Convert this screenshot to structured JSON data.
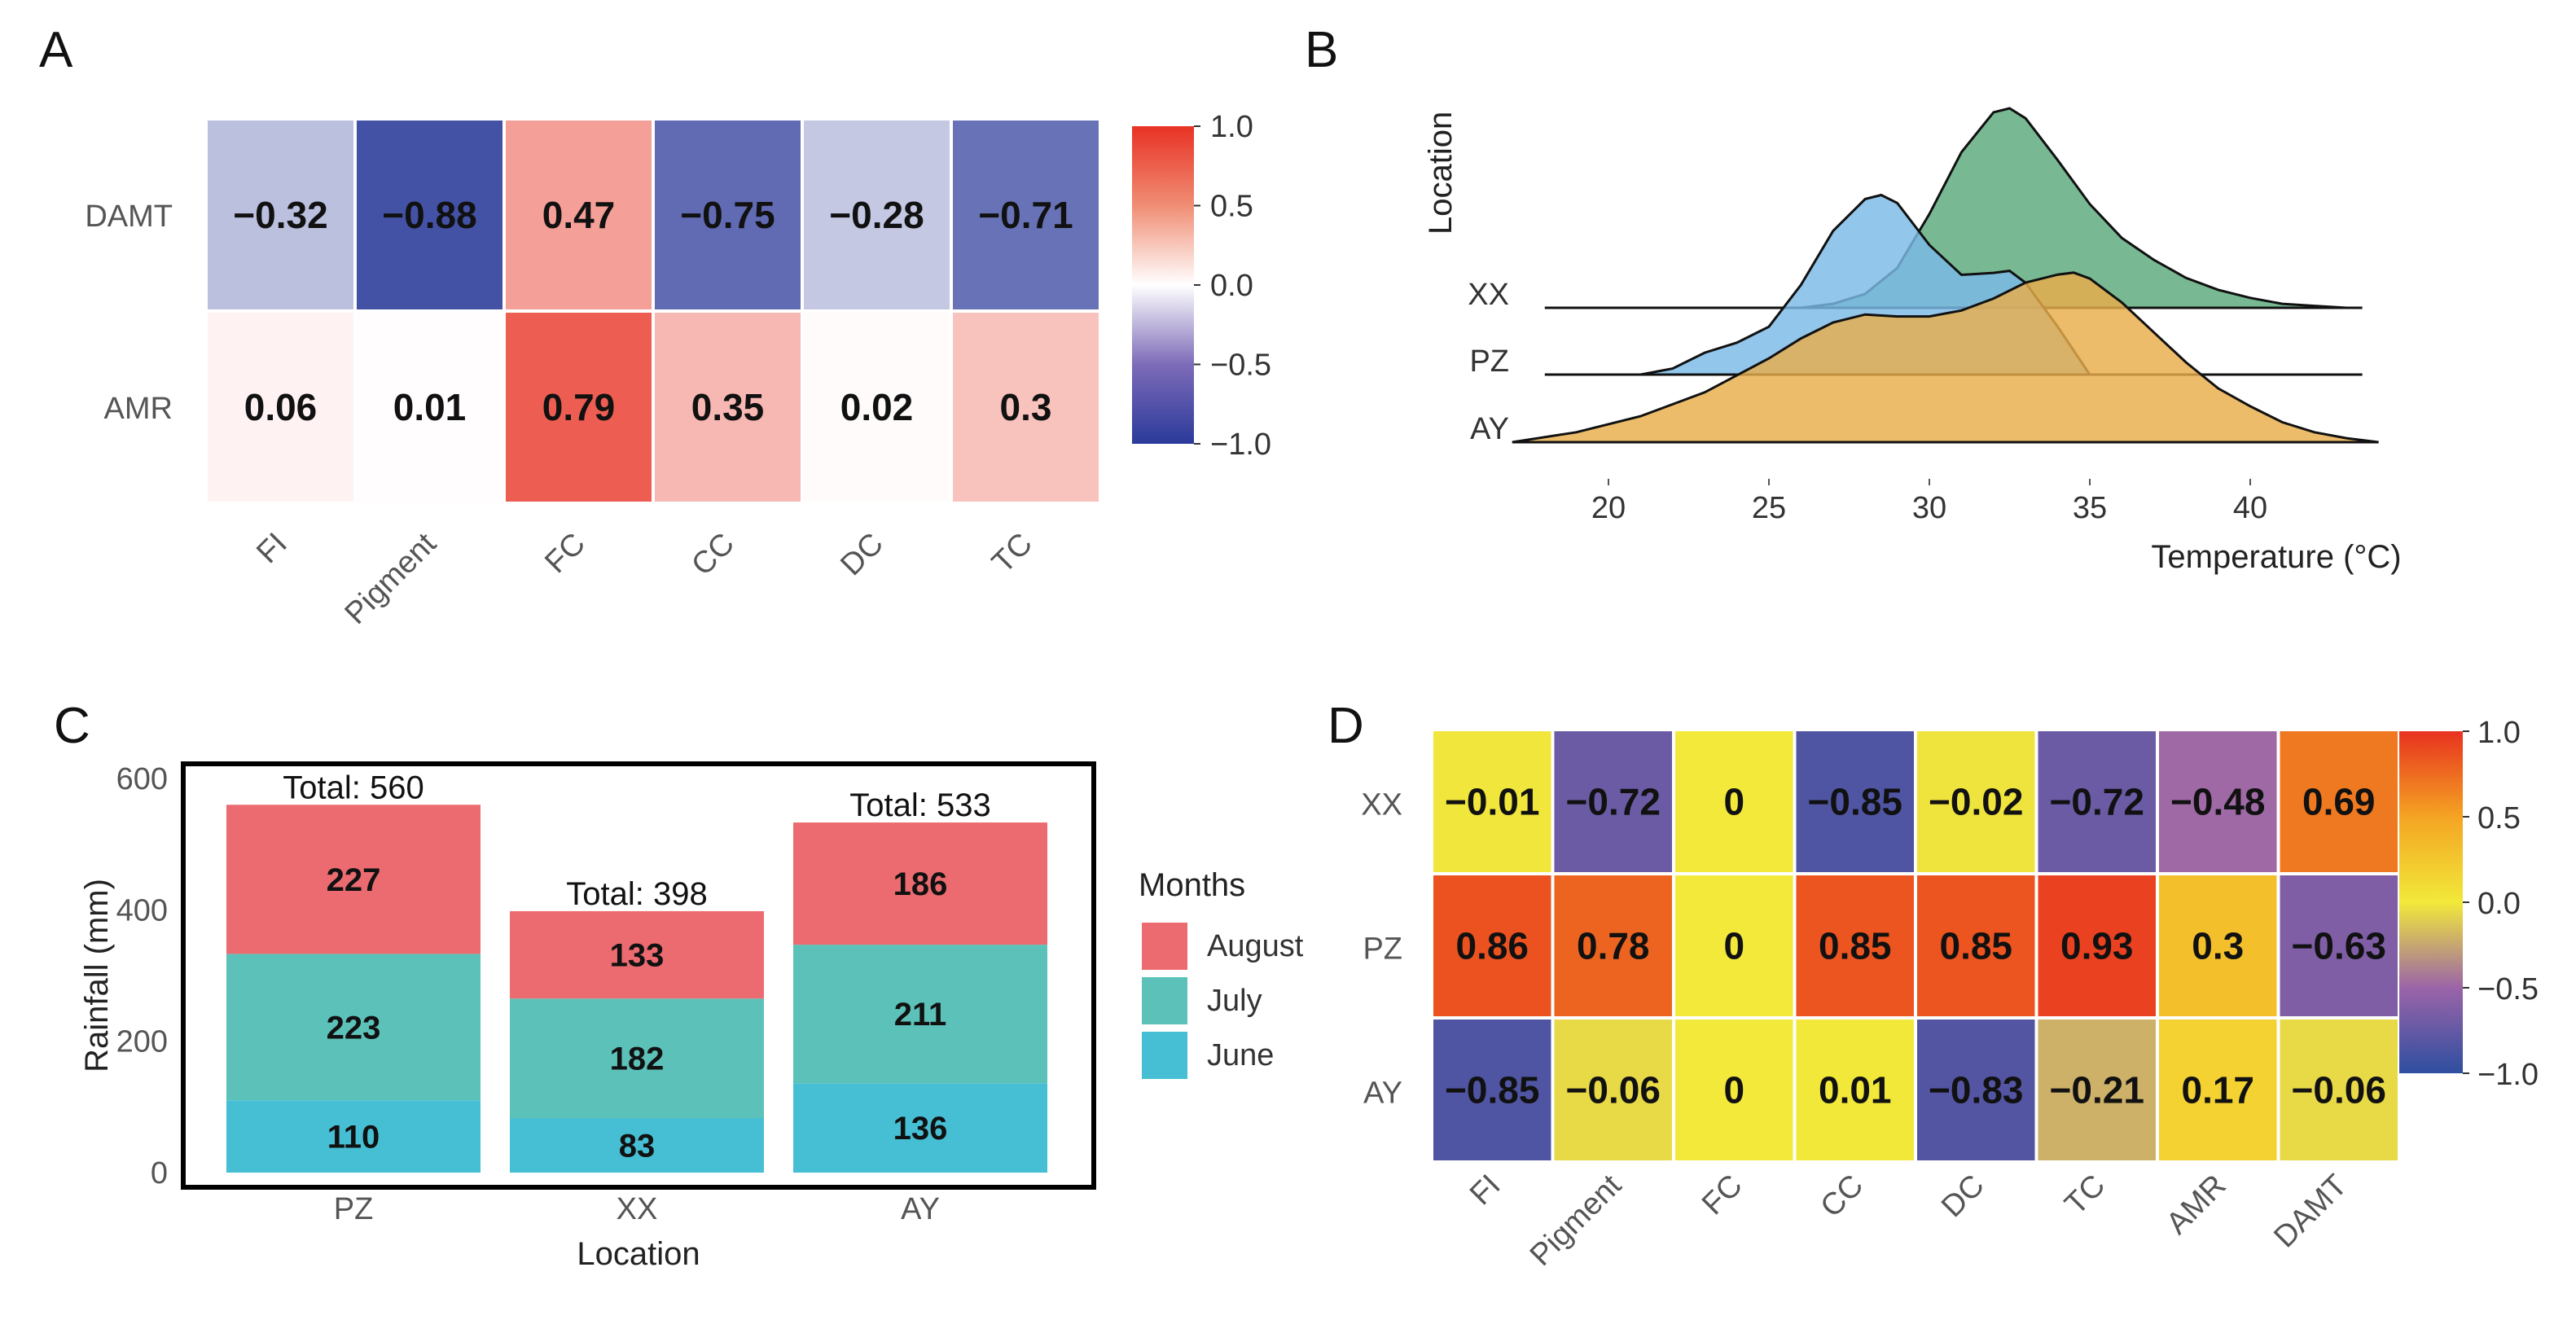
{
  "chart_data": [
    {
      "panel": "A",
      "type": "heatmap",
      "rows": [
        "DAMT",
        "AMR"
      ],
      "columns": [
        "FI",
        "Pigment",
        "FC",
        "CC",
        "DC",
        "TC"
      ],
      "values": [
        [
          -0.32,
          -0.88,
          0.47,
          -0.75,
          -0.28,
          -0.71
        ],
        [
          0.06,
          0.01,
          0.79,
          0.35,
          0.02,
          0.3
        ]
      ],
      "labels": [
        [
          "−0.32",
          "−0.88",
          "0.47",
          "−0.75",
          "−0.28",
          "−0.71"
        ],
        [
          "0.06",
          "0.01",
          "0.79",
          "0.35",
          "0.02",
          "0.3"
        ]
      ],
      "color_scale": {
        "min": -1.0,
        "max": 1.0,
        "low": "#2b3a9a",
        "mid": "#ffffff",
        "high": "#e83224"
      },
      "legend_ticks": [
        "1.0",
        "0.5",
        "0.0",
        "−0.5",
        "−1.0"
      ],
      "legend_tick_values": [
        1.0,
        0.5,
        0.0,
        -0.5,
        -1.0
      ]
    },
    {
      "panel": "B",
      "type": "area",
      "subtype": "ridgeline",
      "xlabel": "Temperature (°C)",
      "ylabel": "Location",
      "xlim": [
        17,
        44
      ],
      "xticks": [
        20,
        25,
        30,
        35,
        40
      ],
      "xtick_labels": [
        "20",
        "25",
        "30",
        "35",
        "40"
      ],
      "series": [
        {
          "name": "XX",
          "color": "#5aaa7c",
          "range": [
            26,
            43
          ],
          "density": [
            [
              26,
              0
            ],
            [
              27,
              0.02
            ],
            [
              28,
              0.07
            ],
            [
              29,
              0.2
            ],
            [
              30,
              0.47
            ],
            [
              31,
              0.78
            ],
            [
              32,
              0.98
            ],
            [
              32.5,
              1
            ],
            [
              33,
              0.95
            ],
            [
              34,
              0.74
            ],
            [
              35,
              0.52
            ],
            [
              36,
              0.35
            ],
            [
              37,
              0.24
            ],
            [
              38,
              0.15
            ],
            [
              39,
              0.09
            ],
            [
              40,
              0.05
            ],
            [
              41,
              0.02
            ],
            [
              42,
              0.01
            ],
            [
              43,
              0
            ]
          ]
        },
        {
          "name": "PZ",
          "color": "#7ab9e6",
          "range": [
            21,
            35
          ],
          "density": [
            [
              21,
              0
            ],
            [
              22,
              0.03
            ],
            [
              23,
              0.11
            ],
            [
              24,
              0.16
            ],
            [
              25,
              0.24
            ],
            [
              26,
              0.45
            ],
            [
              27,
              0.72
            ],
            [
              28,
              0.88
            ],
            [
              28.5,
              0.9
            ],
            [
              29,
              0.86
            ],
            [
              30,
              0.65
            ],
            [
              31,
              0.5
            ],
            [
              32,
              0.51
            ],
            [
              32.5,
              0.52
            ],
            [
              33,
              0.46
            ],
            [
              34,
              0.24
            ],
            [
              35,
              0
            ]
          ]
        },
        {
          "name": "AY",
          "color": "#e8ad4b",
          "range": [
            17,
            44
          ],
          "density": [
            [
              17,
              0
            ],
            [
              19,
              0.05
            ],
            [
              21,
              0.13
            ],
            [
              23,
              0.25
            ],
            [
              25,
              0.42
            ],
            [
              26,
              0.52
            ],
            [
              27,
              0.6
            ],
            [
              28,
              0.64
            ],
            [
              29,
              0.63
            ],
            [
              30,
              0.63
            ],
            [
              31,
              0.66
            ],
            [
              32,
              0.72
            ],
            [
              33,
              0.8
            ],
            [
              34,
              0.84
            ],
            [
              34.5,
              0.85
            ],
            [
              35,
              0.82
            ],
            [
              36,
              0.7
            ],
            [
              37,
              0.55
            ],
            [
              38,
              0.4
            ],
            [
              39,
              0.27
            ],
            [
              40,
              0.18
            ],
            [
              41,
              0.1
            ],
            [
              42,
              0.05
            ],
            [
              43,
              0.02
            ],
            [
              44,
              0
            ]
          ]
        }
      ]
    },
    {
      "panel": "C",
      "type": "bar",
      "stacked": true,
      "categories": [
        "PZ",
        "XX",
        "AY"
      ],
      "xlabel": "Location",
      "ylabel": "Rainfall (mm)",
      "ylim": [
        0,
        600
      ],
      "yticks": [
        0,
        200,
        400,
        600
      ],
      "ytick_labels": [
        "0",
        "200",
        "400",
        "600"
      ],
      "legend_title": "Months",
      "series": [
        {
          "name": "June",
          "color": "#46bfd4",
          "values": [
            110,
            83,
            136
          ]
        },
        {
          "name": "July",
          "color": "#5cc1b9",
          "values": [
            223,
            182,
            211
          ]
        },
        {
          "name": "August",
          "color": "#eb6b70",
          "values": [
            227,
            133,
            186
          ]
        }
      ],
      "legend_order": [
        "August",
        "July",
        "June"
      ],
      "totals": [
        560,
        398,
        533
      ],
      "total_labels": [
        "Total: 560",
        "Total: 398",
        "Total: 533"
      ]
    },
    {
      "panel": "D",
      "type": "heatmap",
      "rows": [
        "XX",
        "PZ",
        "AY"
      ],
      "columns": [
        "FI",
        "Pigment",
        "FC",
        "CC",
        "DC",
        "TC",
        "AMR",
        "DAMT"
      ],
      "values": [
        [
          -0.01,
          -0.72,
          0,
          -0.85,
          -0.02,
          -0.72,
          -0.48,
          0.69
        ],
        [
          0.86,
          0.78,
          0,
          0.85,
          0.85,
          0.93,
          0.3,
          -0.63
        ],
        [
          -0.85,
          -0.06,
          0,
          0.01,
          -0.83,
          -0.21,
          0.17,
          -0.06
        ]
      ],
      "labels": [
        [
          "−0.01",
          "−0.72",
          "0",
          "−0.85",
          "−0.02",
          "−0.72",
          "−0.48",
          "0.69"
        ],
        [
          "0.86",
          "0.78",
          "0",
          "0.85",
          "0.85",
          "0.93",
          "0.3",
          "−0.63"
        ],
        [
          "−0.85",
          "−0.06",
          "0",
          "0.01",
          "−0.83",
          "−0.21",
          "0.17",
          "−0.06"
        ]
      ],
      "color_scale": {
        "min": -1.0,
        "max": 1.0,
        "low": "#2e4ea0",
        "mid": "#f2e93a",
        "high": "#e8321f"
      },
      "legend_ticks": [
        "1.0",
        "0.5",
        "0.0",
        "−0.5",
        "−1.0"
      ],
      "legend_tick_values": [
        1.0,
        0.5,
        0.0,
        -0.5,
        -1.0
      ]
    }
  ],
  "panels": {
    "a": "A",
    "b": "B",
    "c": "C",
    "d": "D"
  }
}
